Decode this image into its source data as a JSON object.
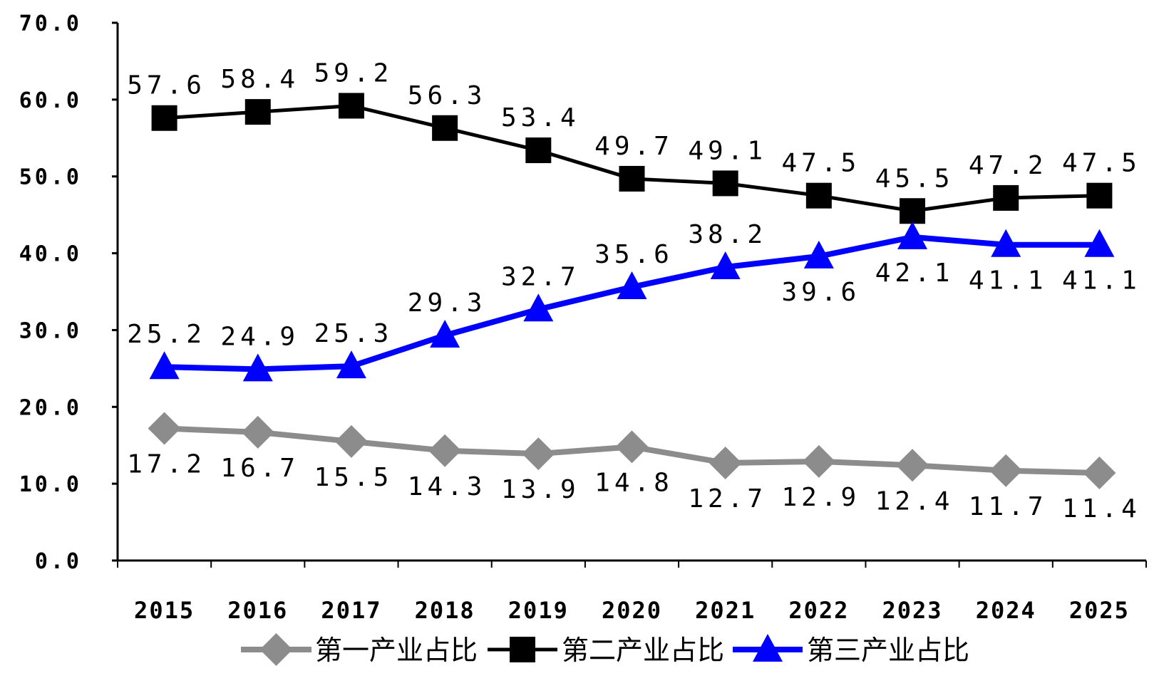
{
  "chart_data": {
    "type": "line",
    "categories": [
      "2015",
      "2016",
      "2017",
      "2018",
      "2019",
      "2020",
      "2021",
      "2022",
      "2023",
      "2024",
      "2025"
    ],
    "y_ticks": [
      "0.0",
      "10.0",
      "20.0",
      "30.0",
      "40.0",
      "50.0",
      "60.0",
      "70.0"
    ],
    "ylim": [
      0,
      70
    ],
    "grid": false,
    "legend_position": "bottom",
    "series": [
      {
        "name": "第一产业占比",
        "color": "#8c8c8c",
        "marker": "diamond",
        "values": [
          17.2,
          16.7,
          15.5,
          14.3,
          13.9,
          14.8,
          12.7,
          12.9,
          12.4,
          11.7,
          11.4
        ],
        "labels": [
          "17.2",
          "16.7",
          "15.5",
          "14.3",
          "13.9",
          "14.8",
          "12.7",
          "12.9",
          "12.4",
          "11.7",
          "11.4"
        ],
        "label_position": "below"
      },
      {
        "name": "第二产业占比",
        "color": "#000000",
        "marker": "square",
        "values": [
          57.6,
          58.4,
          59.2,
          56.3,
          53.4,
          49.7,
          49.1,
          47.5,
          45.5,
          47.2,
          47.5
        ],
        "labels": [
          "57.6",
          "58.4",
          "59.2",
          "56.3",
          "53.4",
          "49.7",
          "49.1",
          "47.5",
          "45.5",
          "47.2",
          "47.5"
        ],
        "label_position": "above"
      },
      {
        "name": "第三产业占比",
        "color": "#0000ff",
        "marker": "triangle",
        "values": [
          25.2,
          24.9,
          25.3,
          29.3,
          32.7,
          35.6,
          38.2,
          39.6,
          42.1,
          41.1,
          41.1
        ],
        "labels": [
          "25.2",
          "24.9",
          "25.3",
          "29.3",
          "32.7",
          "35.6",
          "38.2",
          "39.6",
          "42.1",
          "41.1",
          "41.1"
        ],
        "label_position": [
          "above",
          "above",
          "above",
          "above",
          "above",
          "above",
          "above",
          "below",
          "below",
          "below",
          "below"
        ]
      }
    ]
  }
}
